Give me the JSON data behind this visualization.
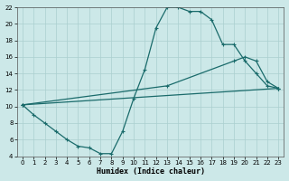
{
  "xlabel": "Humidex (Indice chaleur)",
  "xlim": [
    -0.5,
    23.5
  ],
  "ylim": [
    4,
    22
  ],
  "xticks": [
    0,
    1,
    2,
    3,
    4,
    5,
    6,
    7,
    8,
    9,
    10,
    11,
    12,
    13,
    14,
    15,
    16,
    17,
    18,
    19,
    20,
    21,
    22,
    23
  ],
  "yticks": [
    4,
    6,
    8,
    10,
    12,
    14,
    16,
    18,
    20,
    22
  ],
  "bg_color": "#cce8e8",
  "line_color": "#1a6b6b",
  "grid_color": "#aacfcf",
  "line1_x": [
    0,
    1,
    2,
    3,
    4,
    5,
    6,
    7,
    8,
    9,
    10,
    11,
    12,
    13,
    14,
    15,
    16,
    17,
    18,
    19,
    20,
    21,
    22,
    23
  ],
  "line1_y": [
    10.2,
    9.0,
    8.0,
    7.0,
    6.0,
    5.2,
    5.0,
    4.3,
    4.3,
    7.0,
    11.0,
    14.5,
    19.5,
    22.0,
    22.0,
    21.5,
    21.5,
    20.5,
    17.5,
    17.5,
    15.5,
    14.0,
    12.5,
    12.2
  ],
  "line2_x": [
    0,
    23
  ],
  "line2_y": [
    10.2,
    12.2
  ],
  "line3_x": [
    0,
    13,
    19,
    20,
    21,
    22,
    23
  ],
  "line3_y": [
    10.2,
    12.5,
    15.5,
    16.0,
    15.5,
    13.0,
    12.2
  ]
}
